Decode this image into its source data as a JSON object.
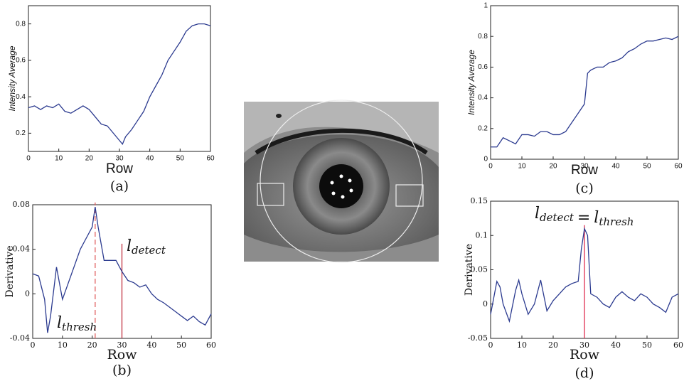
{
  "chart_data": [
    {
      "type": "line",
      "caption": "(a)",
      "xlabel": "Row",
      "ylabel": "Intensity Average",
      "x": [
        0,
        2,
        4,
        6,
        8,
        10,
        12,
        14,
        16,
        18,
        20,
        22,
        24,
        26,
        28,
        30,
        31,
        32,
        34,
        36,
        38,
        40,
        42,
        44,
        46,
        48,
        50,
        52,
        54,
        56,
        58,
        60
      ],
      "series": [
        {
          "color": "#2b3a8f",
          "values": [
            0.34,
            0.35,
            0.33,
            0.35,
            0.34,
            0.36,
            0.32,
            0.31,
            0.33,
            0.35,
            0.33,
            0.29,
            0.25,
            0.24,
            0.2,
            0.16,
            0.14,
            0.18,
            0.22,
            0.27,
            0.32,
            0.4,
            0.46,
            0.52,
            0.6,
            0.65,
            0.7,
            0.76,
            0.79,
            0.8,
            0.8,
            0.79
          ]
        }
      ],
      "xlim": [
        0,
        60
      ],
      "xticks": [
        0,
        10,
        20,
        30,
        40,
        50,
        60
      ],
      "ylim": [
        0.1,
        0.9
      ],
      "yticks": [
        0.2,
        0.4,
        0.6,
        0.8
      ]
    },
    {
      "type": "line",
      "caption": "(b)",
      "xlabel": "Row",
      "ylabel": "Derivative",
      "x": [
        0,
        2,
        4,
        5,
        6,
        8,
        10,
        12,
        14,
        16,
        18,
        20,
        21,
        22,
        24,
        26,
        28,
        30,
        32,
        34,
        36,
        38,
        40,
        42,
        44,
        46,
        48,
        50,
        52,
        54,
        56,
        58,
        60
      ],
      "series": [
        {
          "color": "#2b3a8f",
          "values": [
            0.018,
            0.016,
            -0.005,
            -0.035,
            -0.02,
            0.024,
            -0.005,
            0.01,
            0.025,
            0.04,
            0.05,
            0.06,
            0.078,
            0.06,
            0.03,
            0.03,
            0.03,
            0.02,
            0.012,
            0.01,
            0.006,
            0.008,
            0,
            -0.005,
            -0.008,
            -0.012,
            -0.016,
            -0.02,
            -0.024,
            -0.02,
            -0.025,
            -0.028,
            -0.018
          ]
        }
      ],
      "annotations": [
        {
          "x": 21,
          "color": "#e06060",
          "dashed": true,
          "label": [
            {
              "text": "l"
            },
            {
              "sub": "thresh"
            }
          ]
        },
        {
          "x": 30,
          "color": "#c03040",
          "dashed": false,
          "label": [
            {
              "text": "l"
            },
            {
              "sub": "detect"
            }
          ]
        }
      ],
      "xlim": [
        0,
        60
      ],
      "xticks": [
        0,
        10,
        20,
        30,
        40,
        50,
        60
      ],
      "ylim": [
        -0.04,
        0.08
      ],
      "yticks": [
        -0.04,
        0,
        0.04,
        0.08
      ]
    },
    {
      "type": "line",
      "caption": "(c)",
      "xlabel": "Row",
      "ylabel": "Intensity Average",
      "x": [
        0,
        2,
        4,
        6,
        8,
        10,
        12,
        14,
        16,
        18,
        20,
        22,
        24,
        26,
        28,
        30,
        31,
        32,
        34,
        36,
        38,
        40,
        42,
        44,
        46,
        48,
        50,
        52,
        54,
        56,
        58,
        60
      ],
      "series": [
        {
          "color": "#2b3a8f",
          "values": [
            0.08,
            0.08,
            0.14,
            0.12,
            0.1,
            0.16,
            0.16,
            0.15,
            0.18,
            0.18,
            0.16,
            0.16,
            0.18,
            0.24,
            0.3,
            0.36,
            0.56,
            0.58,
            0.6,
            0.6,
            0.63,
            0.64,
            0.66,
            0.7,
            0.72,
            0.75,
            0.77,
            0.77,
            0.78,
            0.79,
            0.78,
            0.8
          ]
        }
      ],
      "xlim": [
        0,
        60
      ],
      "xticks": [
        0,
        10,
        20,
        30,
        40,
        50,
        60
      ],
      "ylim": [
        0,
        1
      ],
      "yticks": [
        0,
        0.2,
        0.4,
        0.6,
        0.8,
        1
      ]
    },
    {
      "type": "line",
      "caption": "(d)",
      "xlabel": "Row",
      "ylabel": "Derivative",
      "x": [
        0,
        2,
        3,
        4,
        6,
        8,
        9,
        10,
        12,
        14,
        16,
        18,
        20,
        22,
        24,
        26,
        28,
        29,
        30,
        31,
        32,
        34,
        36,
        38,
        40,
        42,
        44,
        46,
        48,
        50,
        52,
        54,
        56,
        58,
        60
      ],
      "series": [
        {
          "color": "#2b3a8f",
          "values": [
            -0.015,
            0.033,
            0.025,
            0,
            -0.025,
            0.02,
            0.035,
            0.015,
            -0.015,
            0,
            0.035,
            -0.01,
            0.005,
            0.015,
            0.025,
            0.03,
            0.033,
            0.08,
            0.11,
            0.1,
            0.015,
            0.01,
            0,
            -0.005,
            0.01,
            0.018,
            0.01,
            0.005,
            0.015,
            0.01,
            0,
            -0.005,
            -0.012,
            0.01,
            0.015
          ]
        }
      ],
      "annotations": [
        {
          "x": 30,
          "color": "#e03050",
          "dashed": false,
          "label": [
            {
              "text": "l"
            },
            {
              "sub": "detect"
            },
            {
              "text": "="
            },
            {
              "text": "l"
            },
            {
              "sub": "thresh"
            }
          ]
        }
      ],
      "xlim": [
        0,
        60
      ],
      "xticks": [
        0,
        10,
        20,
        30,
        40,
        50,
        60
      ],
      "ylim": [
        -0.05,
        0.15
      ],
      "yticks": [
        -0.05,
        0,
        0.05,
        0.1,
        0.15
      ]
    }
  ]
}
